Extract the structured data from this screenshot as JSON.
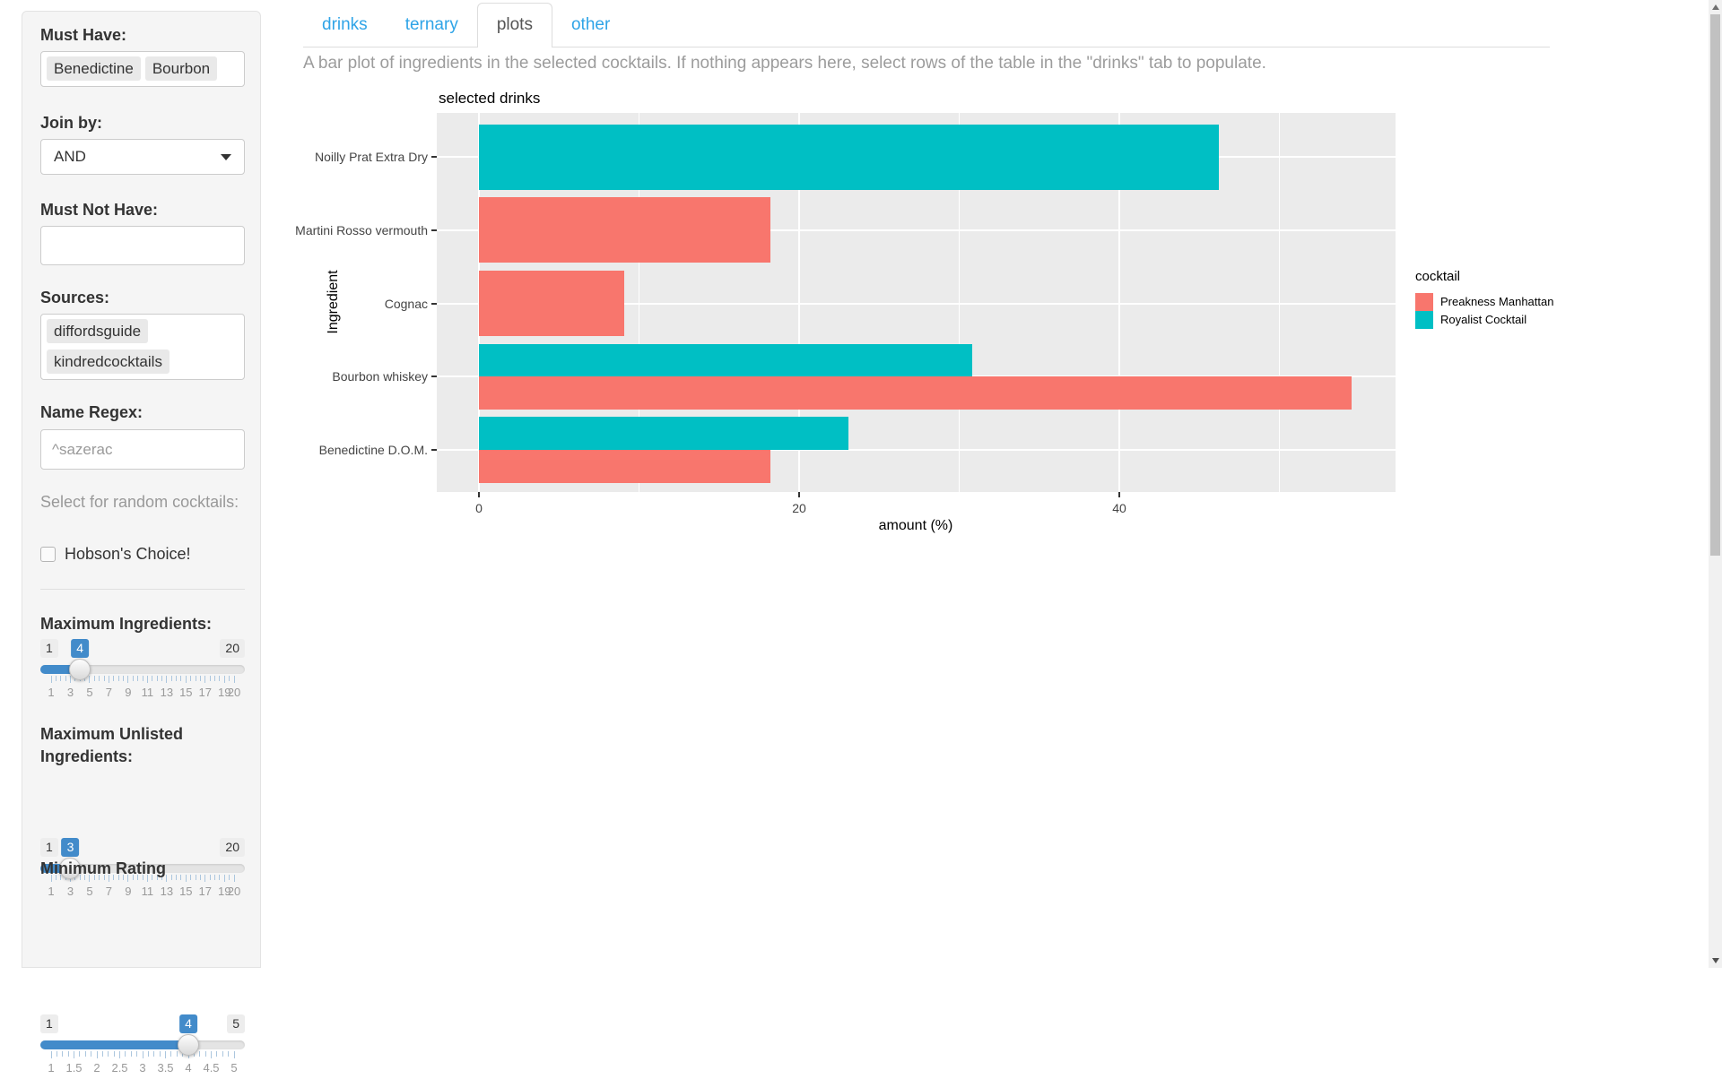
{
  "sidebar": {
    "must_have": {
      "label": "Must Have:",
      "tags": [
        "Benedictine",
        "Bourbon"
      ]
    },
    "join_by": {
      "label": "Join by:",
      "value": "AND"
    },
    "must_not_have": {
      "label": "Must Not Have:",
      "value": ""
    },
    "sources": {
      "label": "Sources:",
      "tags": [
        "diffordsguide",
        "kindredcocktails"
      ]
    },
    "name_regex": {
      "label": "Name Regex:",
      "placeholder": "^sazerac"
    },
    "random_note": "Select for random cocktails:",
    "hobsons_choice": {
      "label": "Hobson's Choice!",
      "checked": false
    },
    "sliders": [
      {
        "label": "Maximum Ingredients:",
        "min": 1,
        "max": 20,
        "value": 4,
        "grid": [
          1,
          3,
          5,
          7,
          9,
          11,
          13,
          15,
          17,
          19,
          20
        ],
        "minor_ticks": 39
      },
      {
        "label": "Maximum Unlisted Ingredients:",
        "min": 1,
        "max": 20,
        "value": 3,
        "grid": [
          1,
          3,
          5,
          7,
          9,
          11,
          13,
          15,
          17,
          19,
          20
        ],
        "minor_ticks": 39
      },
      {
        "label": "Minimum Rating",
        "min": 1,
        "max": 5,
        "value": 4,
        "grid": [
          1,
          1.5,
          2,
          2.5,
          3,
          3.5,
          4,
          4.5,
          5
        ],
        "minor_ticks": 33
      }
    ],
    "accent_color": "#428bca"
  },
  "tabs": [
    {
      "label": "drinks",
      "active": false
    },
    {
      "label": "ternary",
      "active": false
    },
    {
      "label": "plots",
      "active": true
    },
    {
      "label": "other",
      "active": false
    }
  ],
  "tab_link_color": "#2fa4e7",
  "description": "A bar plot of ingredients in the selected cocktails. If nothing appears here, select rows of the table in the \"drinks\" tab to populate.",
  "chart_data": {
    "type": "bar",
    "orientation": "horizontal",
    "title": "selected drinks",
    "xlabel": "amount (%)",
    "ylabel": "Ingredient",
    "x_ticks": [
      0,
      20,
      40
    ],
    "x_minor_gridlines": [
      10,
      30,
      50
    ],
    "xlim": [
      -2.6,
      57.3
    ],
    "panel_bg": "#EBEBEB",
    "gridline_color": "#FFFFFF",
    "legend": {
      "title": "cocktail",
      "position": "right",
      "entries": [
        {
          "label": "Preakness Manhattan",
          "color": "#F8766D"
        },
        {
          "label": "Royalist Cocktail",
          "color": "#00BFC4"
        }
      ]
    },
    "rows": [
      {
        "ingredient": "Noilly Prat Extra Dry",
        "bars": [
          {
            "cocktail": "Royalist Cocktail",
            "value": 46.2
          }
        ]
      },
      {
        "ingredient": "Martini Rosso vermouth",
        "bars": [
          {
            "cocktail": "Preakness Manhattan",
            "value": 18.2
          }
        ]
      },
      {
        "ingredient": "Cognac",
        "bars": [
          {
            "cocktail": "Preakness Manhattan",
            "value": 9.1
          }
        ]
      },
      {
        "ingredient": "Bourbon whiskey",
        "bars": [
          {
            "cocktail": "Royalist Cocktail",
            "value": 30.8
          },
          {
            "cocktail": "Preakness Manhattan",
            "value": 54.5
          }
        ]
      },
      {
        "ingredient": "Benedictine D.O.M.",
        "bars": [
          {
            "cocktail": "Royalist Cocktail",
            "value": 23.1
          },
          {
            "cocktail": "Preakness Manhattan",
            "value": 18.2
          }
        ]
      }
    ]
  }
}
